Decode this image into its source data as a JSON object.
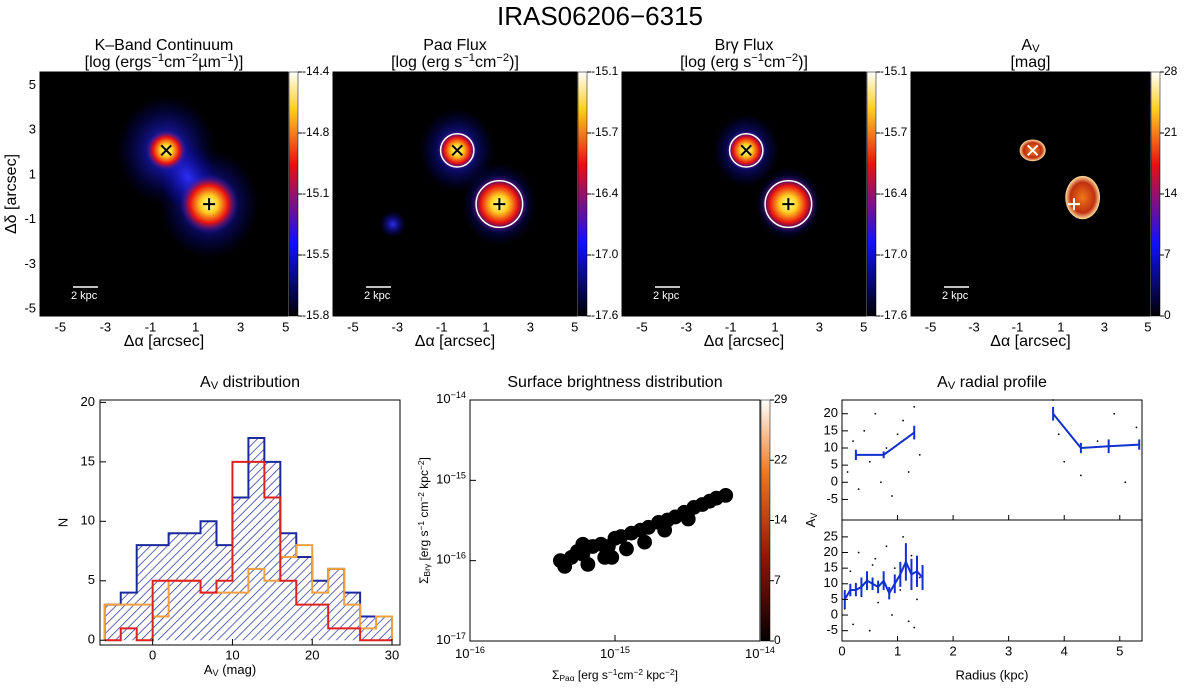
{
  "title": "IRAS06206−6315",
  "chart_data": [
    {
      "type": "image",
      "title": "K–Band Continuum",
      "subtitle": [
        "[log (ergs",
        {
          "sup": "−1"
        },
        "cm",
        {
          "sup": "−2"
        },
        "µm",
        {
          "sup": "−1"
        },
        ")]"
      ],
      "xlabel": "Δα [arcsec]",
      "ylabel": "Δδ [arcsec]",
      "xlim": [
        -5.9,
        5.1
      ],
      "ylim": [
        -5.3,
        5.6
      ],
      "xticks": [
        -5,
        -3,
        -1,
        1,
        3,
        5
      ],
      "yticks": [
        5,
        3,
        1,
        -1,
        -3,
        -5
      ],
      "colorbar": {
        "lim": [
          -15.8,
          -14.4
        ],
        "ticks": [
          -14.4,
          {
            "value": -14.75,
            "label": "-14.8"
          },
          -15.1,
          {
            "value": -15.45,
            "label": "-15.5"
          },
          -15.8
        ]
      },
      "scalebar": "2 kpc",
      "marker_color": "#000",
      "nuclei": {
        "x": [
          -0.3,
          1.6
        ],
        "y": [
          2.1,
          -0.3
        ]
      }
    },
    {
      "type": "image",
      "title": "Paα Flux",
      "subtitle": [
        "[log (erg s",
        {
          "sup": "−1"
        },
        "cm",
        {
          "sup": "−2"
        },
        ")]"
      ],
      "xlabel": "Δα [arcsec]",
      "xlim": [
        -5.9,
        5.1
      ],
      "ylim": [
        -5.3,
        5.6
      ],
      "xticks": [
        -5,
        -3,
        -1,
        1,
        3,
        5
      ],
      "colorbar": {
        "lim": [
          -17.6,
          -15.1
        ],
        "ticks": [
          -15.1,
          {
            "value": -15.725,
            "label": "-15.7"
          },
          {
            "value": -16.35,
            "label": "-16.4"
          },
          {
            "value": -16.975,
            "label": "-17.0"
          },
          -17.6
        ]
      },
      "scalebar": "2 kpc",
      "marker_color": "#000",
      "nuclei": {
        "x": [
          -0.3,
          1.6
        ],
        "y": [
          2.1,
          -0.3
        ]
      }
    },
    {
      "type": "image",
      "title": "Brγ Flux",
      "subtitle": [
        "[log (erg s",
        {
          "sup": "−1"
        },
        "cm",
        {
          "sup": "−2"
        },
        ")]"
      ],
      "xlabel": "Δα [arcsec]",
      "xlim": [
        -5.9,
        5.1
      ],
      "ylim": [
        -5.3,
        5.6
      ],
      "xticks": [
        -5,
        -3,
        -1,
        1,
        3,
        5
      ],
      "colorbar": {
        "lim": [
          -17.6,
          -15.1
        ],
        "ticks": [
          -15.1,
          {
            "value": -15.725,
            "label": "-15.7"
          },
          {
            "value": -16.35,
            "label": "-16.4"
          },
          {
            "value": -16.975,
            "label": "-17.0"
          },
          -17.6
        ]
      },
      "scalebar": "2 kpc",
      "marker_color": "#000",
      "nuclei": {
        "x": [
          -0.3,
          1.6
        ],
        "y": [
          2.1,
          -0.3
        ]
      }
    },
    {
      "type": "image",
      "title": [
        "A",
        {
          "sub": "V"
        }
      ],
      "subtitle": "[mag]",
      "xlabel": "Δα [arcsec]",
      "xlim": [
        -5.9,
        5.1
      ],
      "ylim": [
        -5.3,
        5.6
      ],
      "xticks": [
        -5,
        -3,
        -1,
        1,
        3,
        5
      ],
      "colorbar": {
        "lim": [
          0,
          28
        ],
        "ticks": [
          28,
          21,
          14,
          7,
          0
        ]
      },
      "scalebar": "2 kpc",
      "marker_color": "#fff",
      "nuclei": {
        "x": [
          -0.3,
          1.6
        ],
        "y": [
          2.1,
          -0.3
        ]
      }
    },
    {
      "type": "histogram",
      "title": [
        "A",
        {
          "sub": "V"
        },
        " distribution"
      ],
      "xlabel": [
        "A",
        {
          "sub": "V"
        },
        " (mag)"
      ],
      "ylabel": "N",
      "xlim": [
        -6.6,
        31
      ],
      "ylim": [
        -0.4,
        20.2
      ],
      "xticks": [
        0,
        10,
        20,
        30
      ],
      "yticks": [
        0,
        5,
        10,
        15,
        20
      ],
      "bins": [
        -6,
        -4,
        -2,
        0,
        2,
        4,
        6,
        8,
        10,
        12,
        14,
        16,
        18,
        20,
        22,
        24,
        26,
        28,
        30
      ],
      "series": [
        {
          "color": "#1a2a9c",
          "hatch": true,
          "values": [
            3,
            4,
            8,
            8,
            9,
            9,
            10,
            8,
            12,
            17,
            15,
            9,
            7,
            5,
            6,
            4,
            2,
            2
          ]
        },
        {
          "color": "#f0a040",
          "values": [
            3,
            3,
            3,
            2,
            5,
            5,
            4,
            4,
            4,
            6,
            5,
            7,
            8,
            4,
            6,
            3,
            1,
            2
          ]
        },
        {
          "color": "#e02020",
          "values": [
            0,
            1,
            0,
            5,
            5,
            5,
            4,
            5,
            15,
            15,
            12,
            5,
            3,
            3,
            1,
            1,
            0,
            0
          ]
        }
      ]
    },
    {
      "type": "scatter",
      "title": "Surface brightness distribution",
      "log": true,
      "xlabel": [
        "Σ",
        {
          "sub": "Paα"
        },
        " [erg s",
        {
          "sup": "−1"
        },
        "cm",
        {
          "sup": "−2"
        },
        " kpc",
        {
          "sup": "−2"
        },
        "]"
      ],
      "ylabel": [
        "Σ",
        {
          "sub": "Brγ"
        },
        " [erg s",
        {
          "sup": "−1"
        },
        " cm",
        {
          "sup": "−2"
        },
        " kpc",
        {
          "sup": "−2"
        },
        "]"
      ],
      "xlim": [
        1e-16,
        1e-14
      ],
      "ylim": [
        1e-17,
        1e-14
      ],
      "xticks": [
        {
          "value": 1e-16,
          "label": [
            "10",
            {
              "sup": "−16"
            }
          ]
        },
        {
          "value": 1e-15,
          "label": [
            "10",
            {
              "sup": "−15"
            }
          ]
        },
        {
          "value": 1e-14,
          "label": [
            "10",
            {
              "sup": "−14"
            }
          ]
        }
      ],
      "yticks": [
        {
          "value": 1e-17,
          "label": [
            "10",
            {
              "sup": "−17"
            }
          ]
        },
        {
          "value": 1e-16,
          "label": [
            "10",
            {
              "sup": "−16"
            }
          ]
        },
        {
          "value": 1e-15,
          "label": [
            "10",
            {
              "sup": "−15"
            }
          ]
        },
        {
          "value": 1e-14,
          "label": [
            "10",
            {
              "sup": "−14"
            }
          ]
        }
      ],
      "colorbar": {
        "lim": [
          0,
          29
        ],
        "ticks": [
          29,
          {
            "value": 21.75,
            "label": "22"
          },
          {
            "value": 14.5,
            "label": "14"
          },
          {
            "value": 7.25,
            "label": "7"
          },
          0
        ]
      },
      "x": [
        4.2e-16,
        5e-16,
        5.5e-16,
        6e-16,
        7e-16,
        8e-16,
        9e-16,
        1e-15,
        1.1e-15,
        1.3e-15,
        1.5e-15,
        1.7e-15,
        2e-15,
        2.3e-15,
        2.6e-15,
        3e-15,
        3.5e-15,
        4e-15,
        4.5e-15,
        5e-15,
        5.8e-15,
        4.5e-16,
        6.5e-16,
        8.5e-16,
        1.2e-15,
        1.6e-15,
        2.2e-15,
        3.2e-15,
        6e-16,
        9.5e-16
      ],
      "y": [
        1e-16,
        1.1e-16,
        1.3e-16,
        1.2e-16,
        1.5e-16,
        1.6e-16,
        1.5e-16,
        1.9e-16,
        2e-16,
        2.2e-16,
        2.4e-16,
        2.6e-16,
        3e-16,
        3.2e-16,
        3.5e-16,
        4e-16,
        4.6e-16,
        5e-16,
        5.5e-16,
        6e-16,
        6.5e-16,
        8.5e-17,
        9e-17,
        1.1e-16,
        1.4e-16,
        1.7e-16,
        2.4e-16,
        3.3e-16,
        1.6e-16,
        1.1e-16
      ],
      "values": [
        28,
        18,
        22,
        20,
        22,
        16,
        19,
        14,
        12,
        10,
        12,
        9,
        8,
        10,
        6,
        8,
        7,
        10,
        9,
        11,
        12,
        29,
        29,
        29,
        29,
        6,
        4,
        5,
        24,
        27
      ]
    },
    {
      "type": "profile",
      "title": [
        "A",
        {
          "sub": "V"
        },
        " radial profile"
      ],
      "xlabel": "Radius (kpc)",
      "ylabel": [
        "A",
        {
          "sub": "V"
        }
      ],
      "xlim": [
        0,
        5.4
      ],
      "xticks": [
        0,
        1,
        2,
        3,
        4,
        5
      ],
      "panels": [
        {
          "ylim": [
            -11,
            24
          ],
          "yticks": [
            -5,
            0,
            5,
            10,
            15,
            20
          ],
          "points": {
            "x": [
              0.1,
              0.2,
              0.3,
              0.4,
              0.5,
              0.6,
              0.7,
              0.8,
              0.9,
              1.0,
              1.1,
              1.2,
              1.3,
              1.4,
              3.8,
              3.9,
              4.0,
              4.3,
              4.6,
              4.9,
              5.1,
              5.3
            ],
            "y": [
              3,
              12,
              -2,
              15,
              6,
              20,
              0,
              10,
              -4,
              14,
              18,
              3,
              22,
              8,
              24,
              14,
              6,
              2,
              12,
              20,
              0,
              16
            ]
          },
          "line": {
            "x": [
              0.25,
              0.75,
              1.3,
              null,
              3.8,
              4.3,
              4.8,
              5.35
            ],
            "y": [
              8,
              8,
              14.5,
              null,
              20,
              10,
              10.5,
              11
            ],
            "err": [
              1.5,
              1,
              2,
              null,
              2,
              1.5,
              2,
              1.5
            ]
          }
        },
        {
          "ylim": [
            -8.3,
            30.4
          ],
          "yticks": [
            -5,
            0,
            5,
            10,
            15,
            20,
            25
          ],
          "points": {
            "x": [
              0.05,
              0.15,
              0.2,
              0.3,
              0.35,
              0.45,
              0.5,
              0.6,
              0.65,
              0.75,
              0.8,
              0.9,
              0.95,
              1.05,
              1.1,
              1.2,
              1.25,
              1.35,
              1.4,
              0.25,
              0.55,
              0.85,
              1.15,
              1.3
            ],
            "y": [
              2,
              14,
              -3,
              20,
              6,
              12,
              -5,
              18,
              4,
              10,
              22,
              0,
              15,
              8,
              25,
              -2,
              19,
              5,
              12,
              10,
              16,
              7,
              21,
              -4
            ]
          },
          "line": {
            "x": [
              0.05,
              0.15,
              0.25,
              0.35,
              0.45,
              0.55,
              0.65,
              0.75,
              0.85,
              0.95,
              1.05,
              1.15,
              1.25,
              1.35,
              1.45
            ],
            "y": [
              5,
              8,
              8,
              9,
              11,
              10,
              9,
              11,
              7,
              10,
              13,
              17,
              13,
              14,
              12
            ],
            "err": [
              3,
              2,
              2,
              3,
              3,
              2,
              2,
              3,
              2,
              3,
              4,
              6,
              5,
              5,
              4
            ]
          }
        }
      ]
    }
  ]
}
